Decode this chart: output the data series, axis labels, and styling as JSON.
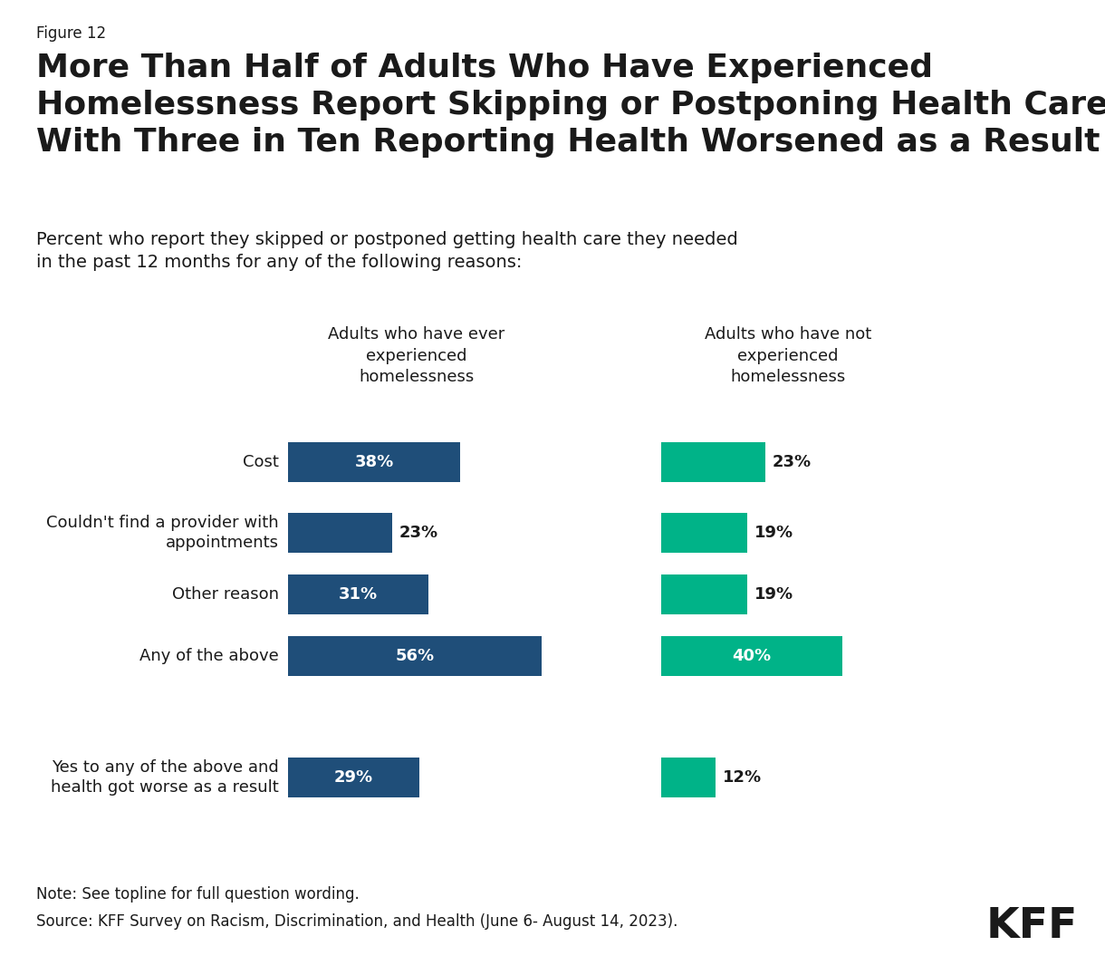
{
  "figure_label": "Figure 12",
  "title": "More Than Half of Adults Who Have Experienced\nHomelessness Report Skipping or Postponing Health Care,\nWith Three in Ten Reporting Health Worsened as a Result",
  "subtitle": "Percent who report they skipped or postponed getting health care they needed\nin the past 12 months for any of the following reasons:",
  "col1_header": "Adults who have ever\nexperienced\nhomelessness",
  "col2_header": "Adults who have not\nexperienced\nhomelessness",
  "categories": [
    "Cost",
    "Couldn't find a provider with\nappointments",
    "Other reason",
    "Any of the above"
  ],
  "extra_category": "Yes to any of the above and\nhealth got worse as a result",
  "values_col1": [
    38,
    23,
    31,
    56
  ],
  "values_col2": [
    23,
    19,
    19,
    40
  ],
  "extra_col1": 29,
  "extra_col2": 12,
  "color_col1": "#1f4e79",
  "color_col2": "#00b388",
  "note": "Note: See topline for full question wording.",
  "source": "Source: KFF Survey on Racism, Discrimination, and Health (June 6- August 14, 2023).",
  "background_color": "#ffffff",
  "text_color": "#1a1a1a",
  "bar_text_color_inside": "#ffffff",
  "bar_text_color_outside": "#1a1a1a"
}
